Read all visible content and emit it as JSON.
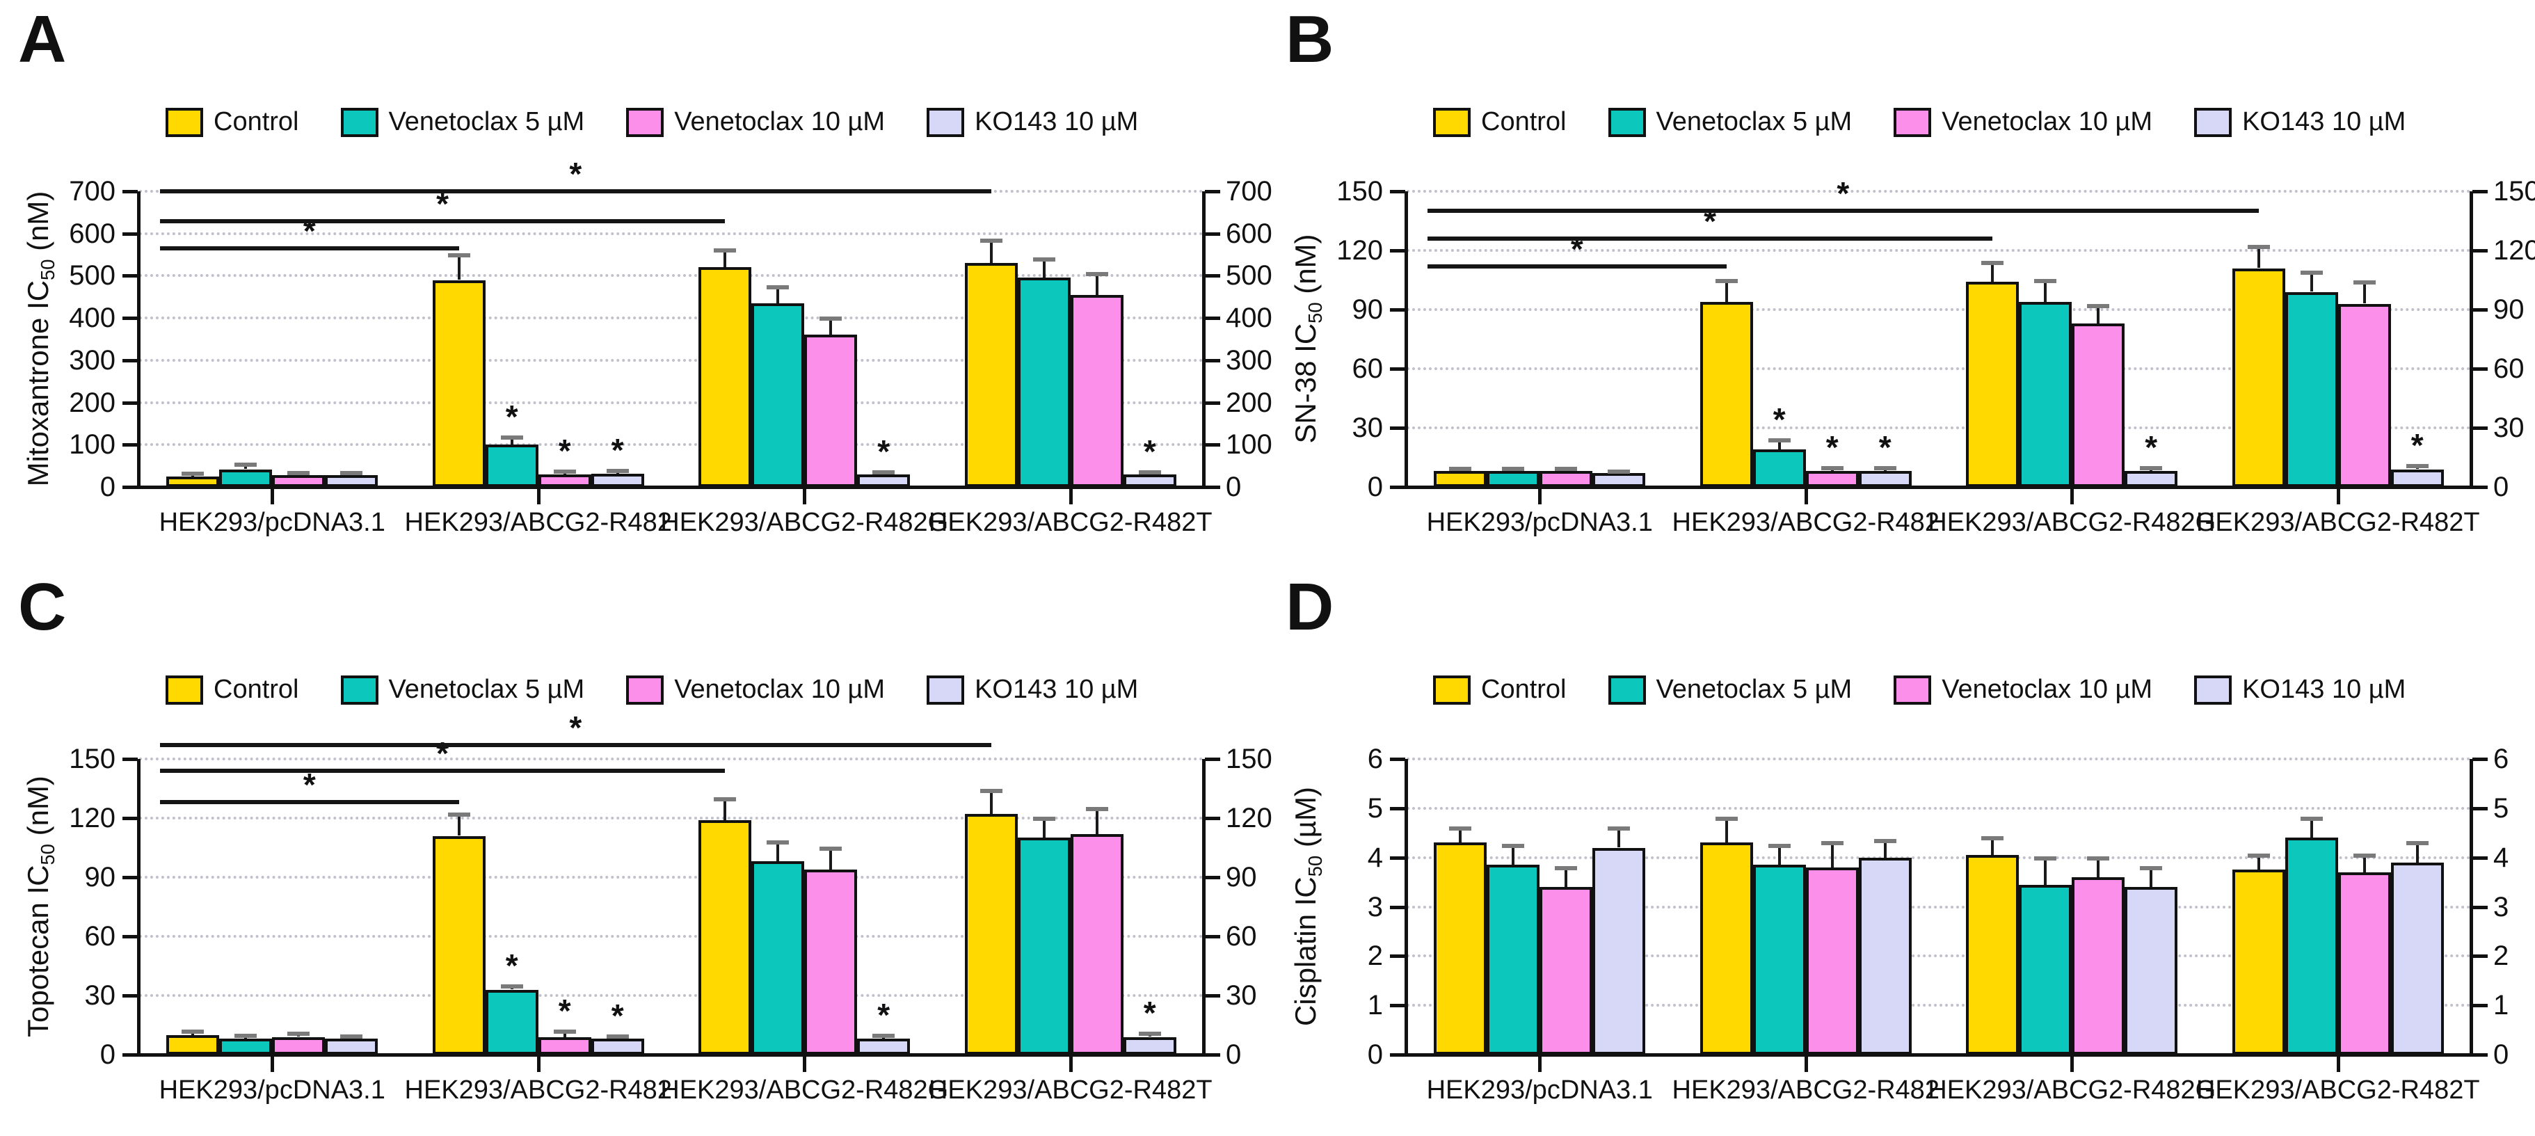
{
  "figure": {
    "background": "#ffffff",
    "star_symbol": "*",
    "legend": {
      "items": [
        {
          "label": "Control",
          "color": "#FFD900"
        },
        {
          "label": "Venetoclax 5 µM",
          "color": "#0BC7BC"
        },
        {
          "label": "Venetoclax 10 µM",
          "color": "#FB8FE9"
        },
        {
          "label": "KO143 10 µM",
          "color": "#D7D8F7"
        }
      ]
    }
  },
  "chart_data": [
    {
      "panel": "A",
      "type": "bar",
      "ylabel": {
        "prefix": "Mitoxantrone IC",
        "sub": "50",
        "suffix": " (nM)",
        "text": "Mitoxantrone IC50 (nM)"
      },
      "ylim": [
        0,
        700
      ],
      "ytick_step": 100,
      "grid": true,
      "legend_position": "top",
      "categories": [
        "HEK293/pcDNA3.1",
        "HEK293/ABCG2-R482",
        "HEK293/ABCG2-R482G",
        "HEK293/ABCG2-R482T"
      ],
      "series": [
        {
          "name": "Control",
          "color": "#FFD900",
          "values": [
            25,
            490,
            520,
            530
          ],
          "errors": [
            8,
            60,
            42,
            55
          ]
        },
        {
          "name": "Venetoclax 5 µM",
          "color": "#0BC7BC",
          "values": [
            42,
            100,
            435,
            495
          ],
          "errors": [
            12,
            18,
            40,
            45
          ]
        },
        {
          "name": "Venetoclax 10 µM",
          "color": "#FB8FE9",
          "values": [
            28,
            30,
            360,
            455
          ],
          "errors": [
            7,
            8,
            40,
            50
          ]
        },
        {
          "name": "KO143 10 µM",
          "color": "#D7D8F7",
          "values": [
            28,
            32,
            30,
            30
          ],
          "errors": [
            6,
            8,
            6,
            6
          ]
        }
      ],
      "bar_stars": [
        [
          1,
          1
        ],
        [
          1,
          2
        ],
        [
          1,
          3
        ],
        [
          2,
          3
        ],
        [
          3,
          3
        ]
      ],
      "sig_lines": [
        {
          "y": 565,
          "to_group": 1
        },
        {
          "y": 630,
          "to_group": 2
        },
        {
          "y": 700,
          "to_group": 3
        }
      ]
    },
    {
      "panel": "B",
      "type": "bar",
      "ylabel": {
        "prefix": "SN-38 IC",
        "sub": "50",
        "suffix": " (nM)",
        "text": "SN-38 IC50 (nM)"
      },
      "ylim": [
        0,
        150
      ],
      "ytick_step": 30,
      "grid": true,
      "legend_position": "top",
      "categories": [
        "HEK293/pcDNA3.1",
        "HEK293/ABCG2-R482",
        "HEK293/ABCG2-R482G",
        "HEK293/ABCG2-R482T"
      ],
      "series": [
        {
          "name": "Control",
          "color": "#FFD900",
          "values": [
            8,
            94,
            104,
            111
          ],
          "errors": [
            1.5,
            11,
            10,
            11
          ]
        },
        {
          "name": "Venetoclax 5 µM",
          "color": "#0BC7BC",
          "values": [
            8,
            19,
            94,
            99
          ],
          "errors": [
            1.5,
            5,
            11,
            10
          ]
        },
        {
          "name": "Venetoclax 10 µM",
          "color": "#FB8FE9",
          "values": [
            8,
            8,
            83,
            93
          ],
          "errors": [
            1.5,
            2,
            9,
            11
          ]
        },
        {
          "name": "KO143 10 µM",
          "color": "#D7D8F7",
          "values": [
            7,
            8,
            8,
            9
          ],
          "errors": [
            1,
            2,
            2,
            2
          ]
        }
      ],
      "bar_stars": [
        [
          1,
          1
        ],
        [
          1,
          2
        ],
        [
          1,
          3
        ],
        [
          2,
          3
        ],
        [
          3,
          3
        ]
      ],
      "sig_lines": [
        {
          "y": 112,
          "to_group": 1
        },
        {
          "y": 126,
          "to_group": 2
        },
        {
          "y": 140,
          "to_group": 3
        }
      ]
    },
    {
      "panel": "C",
      "type": "bar",
      "ylabel": {
        "prefix": "Topotecan IC",
        "sub": "50",
        "suffix": " (nM)",
        "text": "Topotecan IC50 (nM)"
      },
      "ylim": [
        0,
        150
      ],
      "ytick_step": 30,
      "grid": true,
      "legend_position": "top",
      "categories": [
        "HEK293/pcDNA3.1",
        "HEK293/ABCG2-R482",
        "HEK293/ABCG2-R482G",
        "HEK293/ABCG2-R482T"
      ],
      "series": [
        {
          "name": "Control",
          "color": "#FFD900",
          "values": [
            10,
            111,
            119,
            122
          ],
          "errors": [
            2,
            11,
            11,
            12
          ]
        },
        {
          "name": "Venetoclax 5 µM",
          "color": "#0BC7BC",
          "values": [
            8,
            33,
            98,
            110
          ],
          "errors": [
            2,
            2,
            10,
            10
          ]
        },
        {
          "name": "Venetoclax 10 µM",
          "color": "#FB8FE9",
          "values": [
            9,
            9,
            94,
            112
          ],
          "errors": [
            2,
            3,
            11,
            13
          ]
        },
        {
          "name": "KO143 10 µM",
          "color": "#D7D8F7",
          "values": [
            8,
            8,
            8,
            9
          ],
          "errors": [
            1.5,
            1.5,
            2,
            2
          ]
        }
      ],
      "bar_stars": [
        [
          1,
          1
        ],
        [
          1,
          2
        ],
        [
          1,
          3
        ],
        [
          2,
          3
        ],
        [
          3,
          3
        ]
      ],
      "sig_lines": [
        {
          "y": 128,
          "to_group": 1
        },
        {
          "y": 144,
          "to_group": 2
        },
        {
          "y": 157,
          "to_group": 3
        }
      ]
    },
    {
      "panel": "D",
      "type": "bar",
      "ylabel": {
        "prefix": "Cisplatin IC",
        "sub": "50",
        "suffix": " (µM)",
        "text": "Cisplatin IC50 (µM)"
      },
      "ylim": [
        0,
        6
      ],
      "ytick_step": 1,
      "grid": true,
      "legend_position": "top",
      "categories": [
        "HEK293/pcDNA3.1",
        "HEK293/ABCG2-R482",
        "HEK293/ABCG2-R482G",
        "HEK293/ABCG2-R482T"
      ],
      "series": [
        {
          "name": "Control",
          "color": "#FFD900",
          "values": [
            4.3,
            4.3,
            4.05,
            3.75
          ],
          "errors": [
            0.3,
            0.5,
            0.35,
            0.3
          ]
        },
        {
          "name": "Venetoclax 5 µM",
          "color": "#0BC7BC",
          "values": [
            3.85,
            3.85,
            3.45,
            4.4
          ],
          "errors": [
            0.4,
            0.4,
            0.55,
            0.4
          ]
        },
        {
          "name": "Venetoclax 10 µM",
          "color": "#FB8FE9",
          "values": [
            3.4,
            3.8,
            3.6,
            3.7
          ],
          "errors": [
            0.4,
            0.5,
            0.4,
            0.35
          ]
        },
        {
          "name": "KO143 10 µM",
          "color": "#D7D8F7",
          "values": [
            4.2,
            4.0,
            3.4,
            3.9
          ],
          "errors": [
            0.4,
            0.35,
            0.4,
            0.4
          ]
        }
      ],
      "bar_stars": [],
      "sig_lines": []
    }
  ]
}
